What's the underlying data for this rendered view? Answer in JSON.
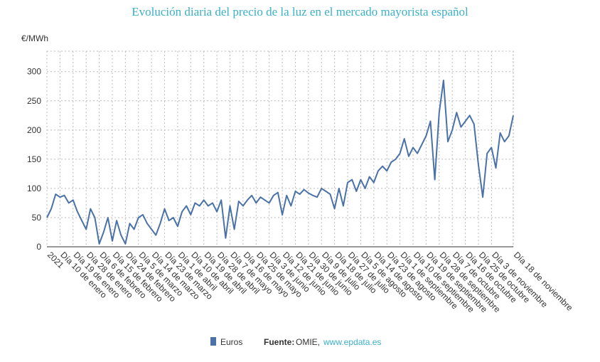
{
  "chart_data": {
    "type": "line",
    "title": "Evolución diaria del precio de la luz en el mercado mayorista español",
    "y_label": "€/MWh",
    "categories": [
      "2021",
      null,
      null,
      "Día 10 de enero",
      null,
      null,
      "Día 19 de enero",
      null,
      null,
      "Día 28 de enero",
      null,
      null,
      "Día 6 de febrero",
      null,
      null,
      "Día 15 de febrero",
      null,
      null,
      "Día 24 de febrero",
      null,
      null,
      "Día 5 de marzo",
      null,
      null,
      "Día 14 de marzo",
      null,
      null,
      "Día 23 de marzo",
      null,
      null,
      "Día 1 de abril",
      null,
      null,
      "Día 10 de abril",
      null,
      null,
      "Día 19 de abril",
      null,
      null,
      "Día 28 de abril",
      null,
      null,
      "Día 7 de mayo",
      null,
      null,
      "Día 16 de mayo",
      null,
      null,
      "Día 25 de mayo",
      null,
      null,
      "Día 3 de junio",
      null,
      null,
      "Día 12 de junio",
      null,
      null,
      "Día 21 de junio",
      null,
      null,
      "Día 30 de junio",
      null,
      null,
      "Día 9 de julio",
      null,
      null,
      "Día 18 de julio",
      null,
      null,
      "Día 27 de julio",
      null,
      null,
      "Día 5 de agosto",
      null,
      null,
      "Día 14 de agosto",
      null,
      null,
      "Día 23 de agosto",
      null,
      null,
      "Día 1 de septiembre",
      null,
      null,
      "Día 10 de septiembre",
      null,
      null,
      "Día 19 de septiembre",
      null,
      null,
      "Día 28 de septiembre",
      null,
      null,
      "Día 7 de octubre",
      null,
      null,
      "Día 16 de octubre",
      null,
      null,
      "Día 25 de octubre",
      null,
      null,
      "Día 3 de noviembre",
      null,
      null,
      null,
      null,
      "Día 18 de noviembre"
    ],
    "series": [
      {
        "name": "Euros",
        "color": "#4a72a8",
        "values": [
          50,
          65,
          90,
          85,
          88,
          75,
          80,
          60,
          45,
          30,
          65,
          50,
          5,
          25,
          50,
          10,
          45,
          20,
          5,
          40,
          30,
          50,
          55,
          40,
          30,
          20,
          40,
          65,
          45,
          50,
          35,
          60,
          70,
          55,
          75,
          70,
          80,
          70,
          75,
          60,
          80,
          15,
          70,
          30,
          78,
          70,
          80,
          88,
          75,
          85,
          80,
          75,
          88,
          93,
          55,
          88,
          70,
          95,
          90,
          98,
          92,
          88,
          85,
          100,
          95,
          90,
          65,
          100,
          70,
          110,
          115,
          95,
          115,
          100,
          120,
          110,
          130,
          138,
          130,
          145,
          150,
          160,
          185,
          155,
          170,
          160,
          175,
          190,
          215,
          115,
          230,
          285,
          180,
          200,
          230,
          205,
          215,
          225,
          210,
          140,
          85,
          160,
          170,
          135,
          195,
          180,
          190,
          225
        ]
      }
    ],
    "ylim": [
      0,
      335
    ],
    "yticks": [
      0,
      50,
      100,
      150,
      200,
      250,
      300
    ],
    "grid": true,
    "source": {
      "label": "Fuente:",
      "text": "OMIE,",
      "link": "www.epdata.es"
    }
  }
}
